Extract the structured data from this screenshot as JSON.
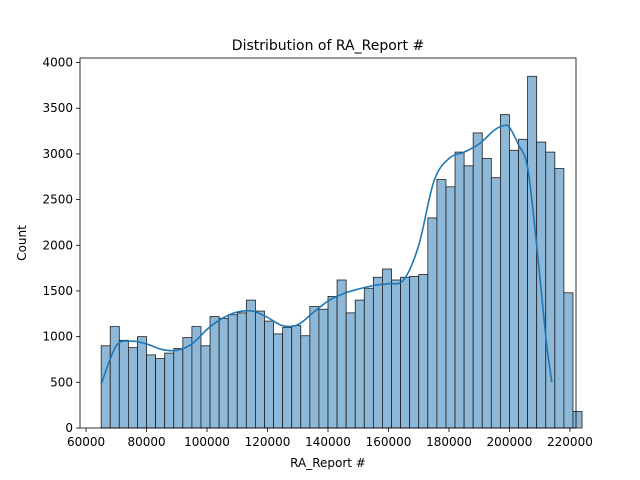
{
  "chart_data": {
    "type": "bar",
    "subtype": "histogram-with-kde",
    "title": "Distribution of RA_Report #",
    "xlabel": "RA_Report #",
    "ylabel": "Count",
    "xlim": [
      58000,
      222000
    ],
    "ylim": [
      0,
      4050
    ],
    "xticks": [
      60000,
      80000,
      100000,
      120000,
      140000,
      160000,
      180000,
      200000,
      220000
    ],
    "yticks": [
      0,
      500,
      1000,
      1500,
      2000,
      2500,
      3000,
      3500,
      4000
    ],
    "bin_start": 65000,
    "bin_width": 3000,
    "values": [
      900,
      1110,
      960,
      880,
      1000,
      800,
      760,
      820,
      870,
      990,
      1110,
      900,
      1220,
      1200,
      1240,
      1260,
      1400,
      1280,
      1170,
      1030,
      1100,
      1120,
      1010,
      1330,
      1300,
      1440,
      1620,
      1260,
      1400,
      1530,
      1650,
      1740,
      1620,
      1650,
      1660,
      1680,
      2300,
      2720,
      2640,
      3020,
      2870,
      3230,
      2950,
      2740,
      3430,
      3040,
      3160,
      3850,
      3130,
      3020,
      2840,
      1480,
      180
    ],
    "kde": {
      "x": [
        65000,
        70000,
        75000,
        80000,
        85000,
        90000,
        95000,
        100000,
        105000,
        110000,
        115000,
        120000,
        125000,
        130000,
        135000,
        140000,
        145000,
        150000,
        155000,
        160000,
        165000,
        170000,
        175000,
        180000,
        185000,
        190000,
        195000,
        198000,
        200000,
        203000,
        206000,
        209000,
        212000,
        214000
      ],
      "y": [
        480,
        900,
        950,
        920,
        860,
        850,
        920,
        1080,
        1200,
        1270,
        1280,
        1210,
        1120,
        1130,
        1260,
        1390,
        1470,
        1520,
        1560,
        1580,
        1620,
        2000,
        2700,
        2950,
        3020,
        3110,
        3260,
        3310,
        3290,
        3100,
        2850,
        2000,
        1000,
        500
      ]
    },
    "colors": {
      "bar_fill": "#8eb8d8",
      "bar_edge": "#1f1f1f",
      "kde_line": "#1f77b4"
    },
    "grid": false,
    "legend": "none"
  }
}
